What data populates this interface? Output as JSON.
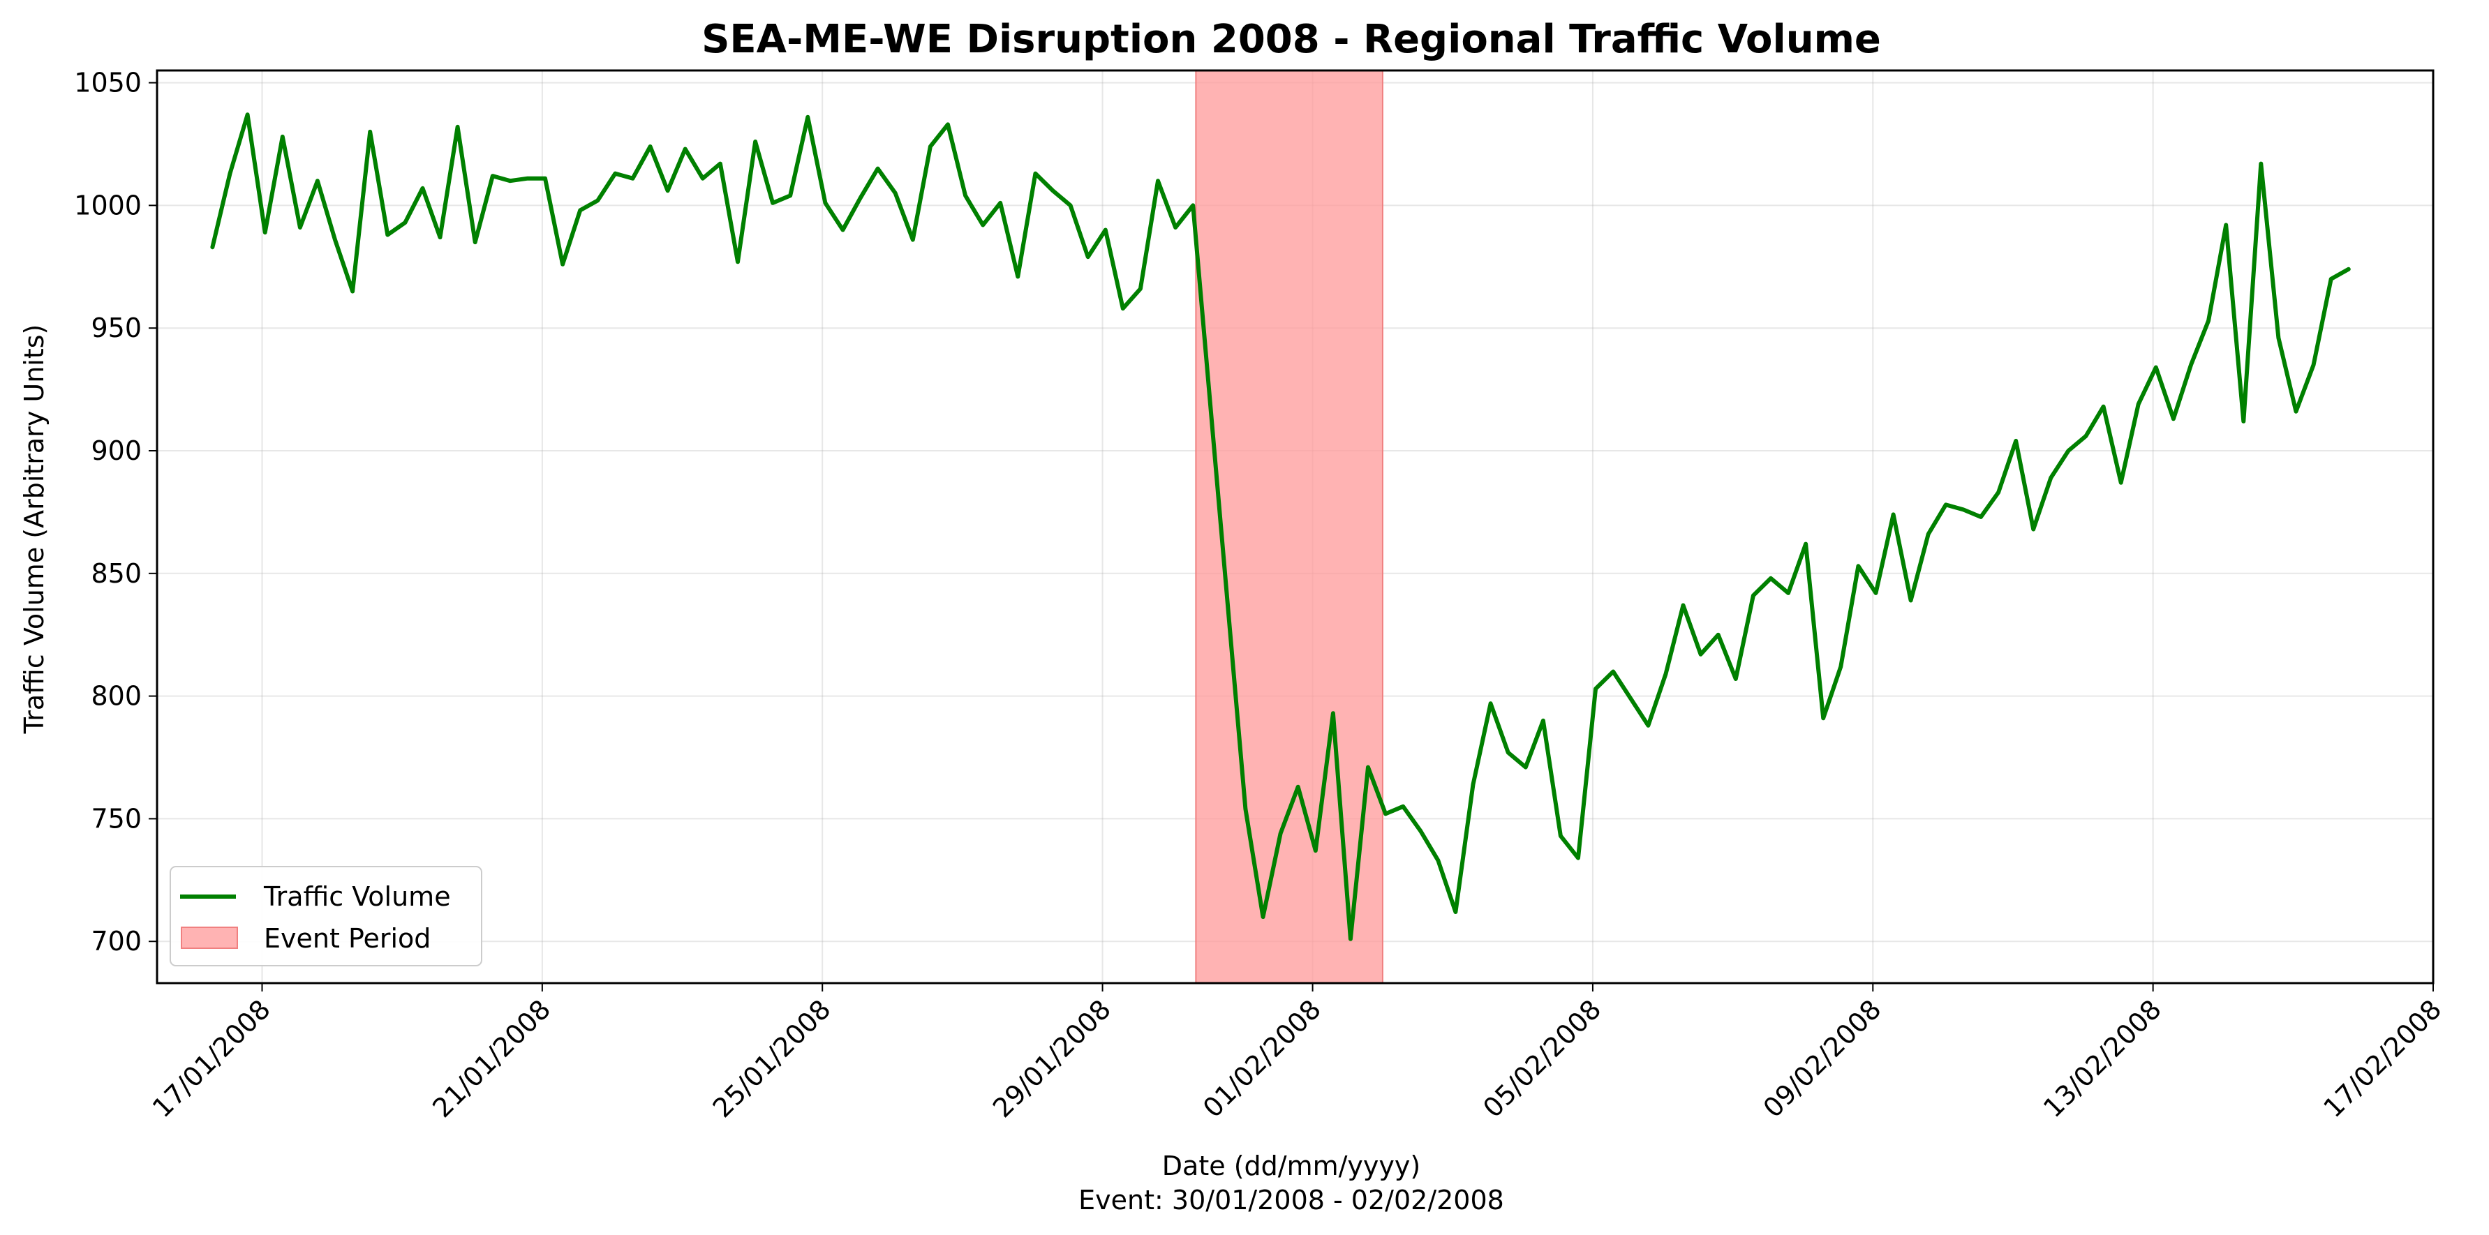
{
  "chart_data": {
    "type": "line",
    "title": "SEA-ME-WE Disruption 2008 - Regional Traffic Volume",
    "xlabel": "Date (dd/mm/yyyy)",
    "xlabel_note": "Event: 30/01/2008 - 02/02/2008",
    "ylabel": "Traffic Volume (Arbitrary Units)",
    "xlim": [
      "2008-01-15T12:00",
      "2008-02-17T00:00"
    ],
    "ylim": [
      683,
      1055
    ],
    "grid": true,
    "legend_position": "lower-left",
    "line_color": "#008000",
    "event_color": "#ff9999",
    "x_ticks": [
      "2008-01-17",
      "2008-01-21",
      "2008-01-25",
      "2008-01-29",
      "2008-02-01",
      "2008-02-05",
      "2008-02-09",
      "2008-02-13",
      "2008-02-17"
    ],
    "x_tick_labels": [
      "17/01/2008",
      "21/01/2008",
      "25/01/2008",
      "29/01/2008",
      "01/02/2008",
      "05/02/2008",
      "09/02/2008",
      "13/02/2008",
      "17/02/2008"
    ],
    "y_ticks": [
      700,
      750,
      800,
      850,
      900,
      950,
      1000,
      1050
    ],
    "y_tick_labels": [
      "700",
      "750",
      "800",
      "850",
      "900",
      "950",
      "1000",
      "1050"
    ],
    "event_period": {
      "label": "Event Period",
      "start": "2008-01-30T08:00",
      "end": "2008-02-02T00:00"
    },
    "series": [
      {
        "name": "Traffic Volume",
        "points": [
          [
            "2008-01-16T07:00",
            983
          ],
          [
            "2008-01-16T13:00",
            1013
          ],
          [
            "2008-01-16T19:00",
            1037
          ],
          [
            "2008-01-17T01:00",
            989
          ],
          [
            "2008-01-17T07:00",
            1028
          ],
          [
            "2008-01-17T13:00",
            991
          ],
          [
            "2008-01-17T19:00",
            1010
          ],
          [
            "2008-01-18T01:00",
            986
          ],
          [
            "2008-01-18T07:00",
            965
          ],
          [
            "2008-01-18T13:00",
            1030
          ],
          [
            "2008-01-18T19:00",
            988
          ],
          [
            "2008-01-19T01:00",
            993
          ],
          [
            "2008-01-19T07:00",
            1007
          ],
          [
            "2008-01-19T13:00",
            987
          ],
          [
            "2008-01-19T19:00",
            1032
          ],
          [
            "2008-01-20T01:00",
            985
          ],
          [
            "2008-01-20T07:00",
            1012
          ],
          [
            "2008-01-20T13:00",
            1010
          ],
          [
            "2008-01-20T19:00",
            1011
          ],
          [
            "2008-01-21T01:00",
            1011
          ],
          [
            "2008-01-21T07:00",
            976
          ],
          [
            "2008-01-21T13:00",
            998
          ],
          [
            "2008-01-21T19:00",
            1002
          ],
          [
            "2008-01-22T01:00",
            1013
          ],
          [
            "2008-01-22T07:00",
            1011
          ],
          [
            "2008-01-22T13:00",
            1024
          ],
          [
            "2008-01-22T19:00",
            1006
          ],
          [
            "2008-01-23T01:00",
            1023
          ],
          [
            "2008-01-23T07:00",
            1011
          ],
          [
            "2008-01-23T13:00",
            1017
          ],
          [
            "2008-01-23T19:00",
            977
          ],
          [
            "2008-01-24T01:00",
            1026
          ],
          [
            "2008-01-24T07:00",
            1001
          ],
          [
            "2008-01-24T13:00",
            1004
          ],
          [
            "2008-01-24T19:00",
            1036
          ],
          [
            "2008-01-25T01:00",
            1001
          ],
          [
            "2008-01-25T07:00",
            990
          ],
          [
            "2008-01-25T13:00",
            1003
          ],
          [
            "2008-01-25T19:00",
            1015
          ],
          [
            "2008-01-26T01:00",
            1005
          ],
          [
            "2008-01-26T07:00",
            986
          ],
          [
            "2008-01-26T13:00",
            1024
          ],
          [
            "2008-01-26T19:00",
            1033
          ],
          [
            "2008-01-27T01:00",
            1004
          ],
          [
            "2008-01-27T07:00",
            992
          ],
          [
            "2008-01-27T13:00",
            1001
          ],
          [
            "2008-01-27T19:00",
            971
          ],
          [
            "2008-01-28T01:00",
            1013
          ],
          [
            "2008-01-28T07:00",
            1006
          ],
          [
            "2008-01-28T13:00",
            1000
          ],
          [
            "2008-01-28T19:00",
            979
          ],
          [
            "2008-01-29T01:00",
            990
          ],
          [
            "2008-01-29T07:00",
            958
          ],
          [
            "2008-01-29T13:00",
            966
          ],
          [
            "2008-01-29T19:00",
            1010
          ],
          [
            "2008-01-30T01:00",
            991
          ],
          [
            "2008-01-30T07:00",
            1000
          ],
          [
            "2008-01-31T01:00",
            754
          ],
          [
            "2008-01-31T07:00",
            710
          ],
          [
            "2008-01-31T13:00",
            744
          ],
          [
            "2008-01-31T19:00",
            763
          ],
          [
            "2008-02-01T01:00",
            737
          ],
          [
            "2008-02-01T07:00",
            793
          ],
          [
            "2008-02-01T13:00",
            701
          ],
          [
            "2008-02-01T19:00",
            771
          ],
          [
            "2008-02-02T01:00",
            752
          ],
          [
            "2008-02-02T07:00",
            755
          ],
          [
            "2008-02-02T13:00",
            745
          ],
          [
            "2008-02-02T19:00",
            733
          ],
          [
            "2008-02-03T01:00",
            712
          ],
          [
            "2008-02-03T07:00",
            764
          ],
          [
            "2008-02-03T13:00",
            797
          ],
          [
            "2008-02-03T19:00",
            777
          ],
          [
            "2008-02-04T01:00",
            771
          ],
          [
            "2008-02-04T07:00",
            790
          ],
          [
            "2008-02-04T13:00",
            743
          ],
          [
            "2008-02-04T19:00",
            734
          ],
          [
            "2008-02-05T01:00",
            803
          ],
          [
            "2008-02-05T07:00",
            810
          ],
          [
            "2008-02-05T13:00",
            799
          ],
          [
            "2008-02-05T19:00",
            788
          ],
          [
            "2008-02-06T01:00",
            809
          ],
          [
            "2008-02-06T07:00",
            837
          ],
          [
            "2008-02-06T13:00",
            817
          ],
          [
            "2008-02-06T19:00",
            825
          ],
          [
            "2008-02-07T01:00",
            807
          ],
          [
            "2008-02-07T07:00",
            841
          ],
          [
            "2008-02-07T13:00",
            848
          ],
          [
            "2008-02-07T19:00",
            842
          ],
          [
            "2008-02-08T01:00",
            862
          ],
          [
            "2008-02-08T07:00",
            791
          ],
          [
            "2008-02-08T13:00",
            812
          ],
          [
            "2008-02-08T19:00",
            853
          ],
          [
            "2008-02-09T01:00",
            842
          ],
          [
            "2008-02-09T07:00",
            874
          ],
          [
            "2008-02-09T13:00",
            839
          ],
          [
            "2008-02-09T19:00",
            866
          ],
          [
            "2008-02-10T01:00",
            878
          ],
          [
            "2008-02-10T07:00",
            876
          ],
          [
            "2008-02-10T13:00",
            873
          ],
          [
            "2008-02-10T19:00",
            883
          ],
          [
            "2008-02-11T01:00",
            904
          ],
          [
            "2008-02-11T07:00",
            868
          ],
          [
            "2008-02-11T13:00",
            889
          ],
          [
            "2008-02-11T19:00",
            900
          ],
          [
            "2008-02-12T01:00",
            906
          ],
          [
            "2008-02-12T07:00",
            918
          ],
          [
            "2008-02-12T13:00",
            887
          ],
          [
            "2008-02-12T19:00",
            919
          ],
          [
            "2008-02-13T01:00",
            934
          ],
          [
            "2008-02-13T07:00",
            913
          ],
          [
            "2008-02-13T13:00",
            935
          ],
          [
            "2008-02-13T19:00",
            953
          ],
          [
            "2008-02-14T01:00",
            992
          ],
          [
            "2008-02-14T07:00",
            912
          ],
          [
            "2008-02-14T13:00",
            1017
          ],
          [
            "2008-02-14T19:00",
            946
          ],
          [
            "2008-02-15T01:00",
            916
          ],
          [
            "2008-02-15T07:00",
            935
          ],
          [
            "2008-02-15T13:00",
            970
          ],
          [
            "2008-02-15T19:00",
            974
          ]
        ]
      }
    ]
  }
}
